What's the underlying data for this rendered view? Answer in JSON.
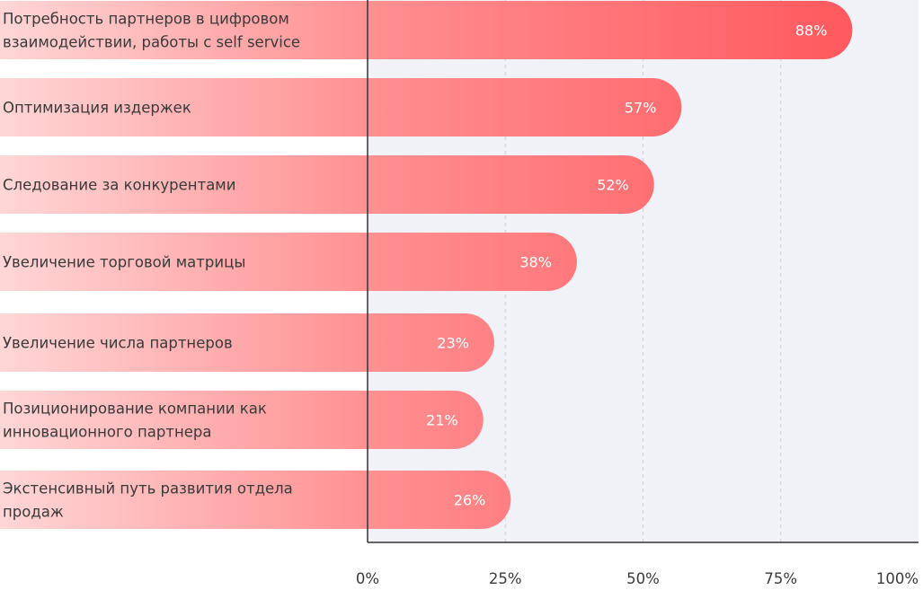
{
  "chart_data": {
    "type": "bar",
    "orientation": "horizontal",
    "categories": [
      [
        "Потребность партнеров в цифровом",
        "взаимодействии, работы с self service"
      ],
      [
        "Оптимизация издержек"
      ],
      [
        "Следование за конкурентами"
      ],
      [
        "Увеличение торговой матрицы"
      ],
      [
        "Увеличение числа партнеров"
      ],
      [
        "Позиционирование компании как",
        "инновационного партнера"
      ],
      [
        "Экстенсивный путь развития отдела",
        "продаж"
      ]
    ],
    "values": [
      88,
      57,
      52,
      38,
      23,
      21,
      26
    ],
    "value_labels": [
      "88%",
      "57%",
      "52%",
      "38%",
      "23%",
      "21%",
      "26%"
    ],
    "x_ticks": [
      0,
      25,
      50,
      75,
      100
    ],
    "x_tick_labels": [
      "0%",
      "25%",
      "50%",
      "75%",
      "100%"
    ],
    "xlim": [
      0,
      100
    ],
    "title": "",
    "xlabel": "",
    "ylabel": "",
    "grid": "vertical dashed",
    "legend": "none",
    "colors": {
      "bar_start": "#ffd6d6",
      "bar_end": "#ff5a5f",
      "plot_background": "#f1f1f8",
      "axis": "#333333",
      "grid": "#d0d0d8",
      "value_text": "#ffffff",
      "label_text": "#3a3a3a"
    }
  }
}
